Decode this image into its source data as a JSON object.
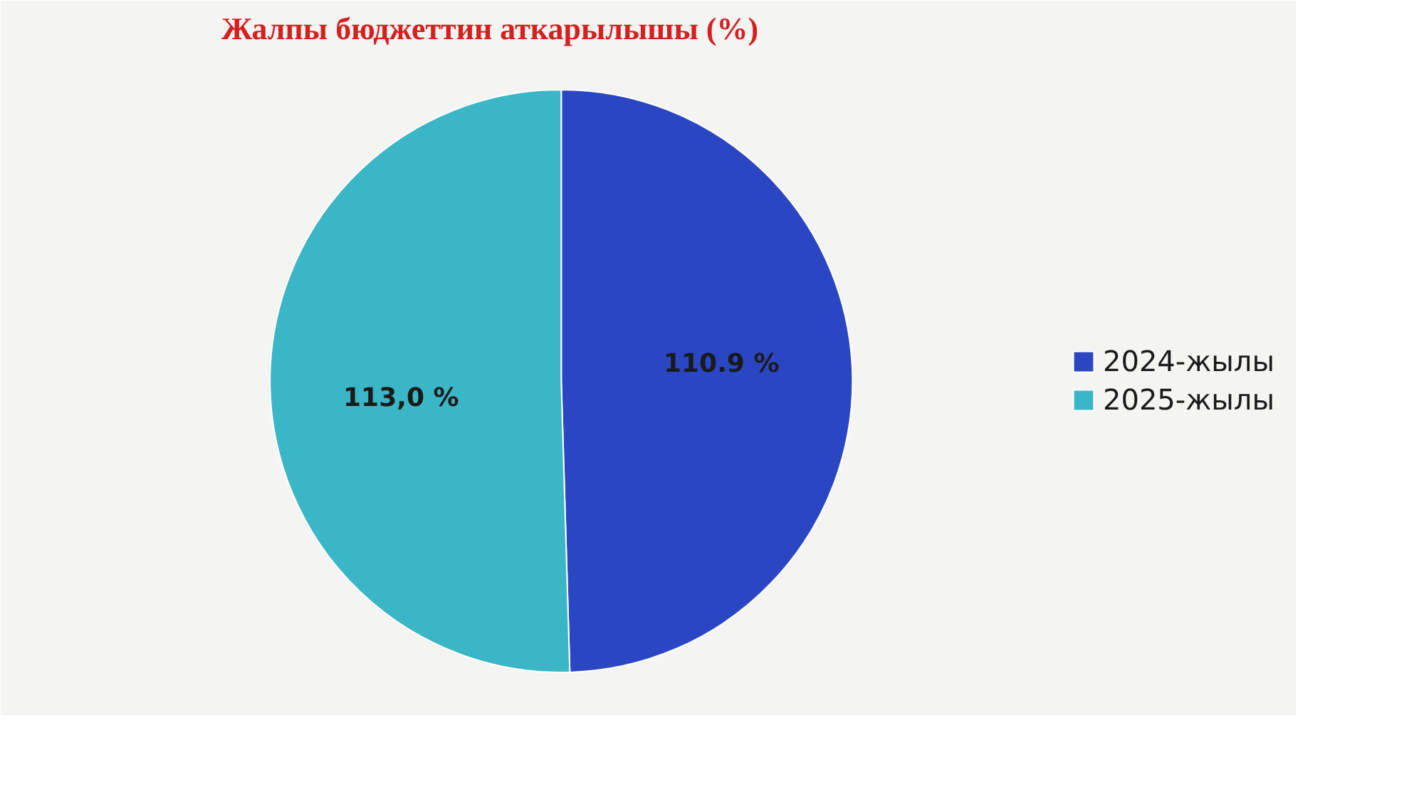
{
  "chart_data": {
    "type": "pie",
    "title": "Жалпы бюджеттин аткарылышы (%)",
    "categories": [
      "2024-жылы",
      "2025-жылы"
    ],
    "values": [
      110.9,
      113.0
    ],
    "colors": [
      "#2b46c2",
      "#3ab6c6"
    ],
    "value_labels": [
      "110.9 %",
      "113,0 %"
    ],
    "legend": "right"
  }
}
